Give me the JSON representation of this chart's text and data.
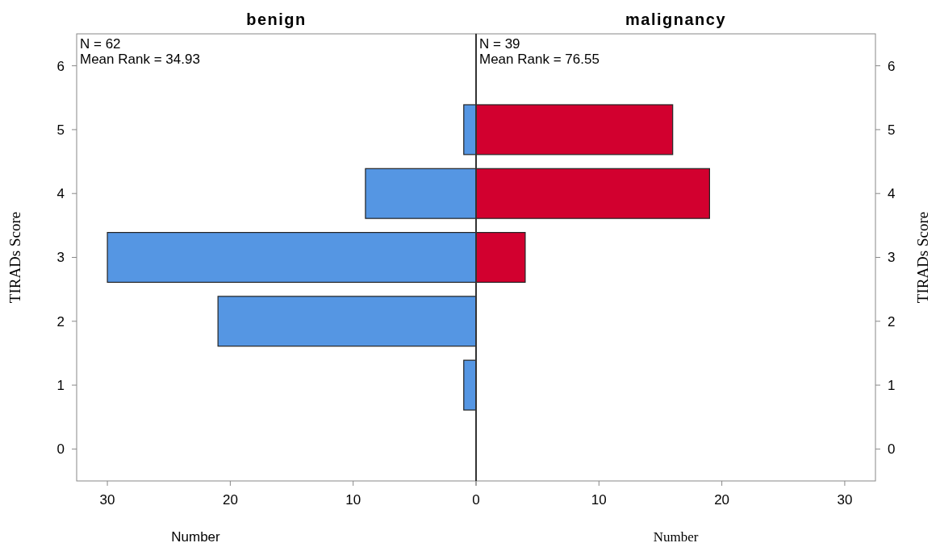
{
  "chart_data": [
    {
      "type": "bar",
      "orientation": "horizontal",
      "title": "benign",
      "xlabel": "Number",
      "ylabel": "TIRADs Score",
      "categories": [
        "6",
        "5",
        "4",
        "3",
        "2",
        "1",
        "0"
      ],
      "values": [
        null,
        1,
        9,
        30,
        21,
        1,
        null
      ],
      "color": "#5596e3",
      "xlim": [
        32.5,
        0
      ],
      "xticks": [
        30,
        20,
        10,
        {
          "value": 0,
          "label": null
        }
      ],
      "annotations": [
        "N = 62",
        "Mean Rank = 34.93"
      ]
    },
    {
      "type": "bar",
      "orientation": "horizontal",
      "title": "malignancy",
      "xlabel": "Number",
      "ylabel": "TIRADs Score",
      "categories": [
        "6",
        "5",
        "4",
        "3",
        "2",
        "1",
        "0"
      ],
      "values": [
        null,
        16,
        19,
        4,
        null,
        null,
        null
      ],
      "color": "#d2002f",
      "xlim": [
        0,
        32.5
      ],
      "xticks": [
        0,
        10,
        20,
        30
      ],
      "annotations": [
        "N = 39",
        "Mean Rank = 76.55"
      ]
    }
  ]
}
